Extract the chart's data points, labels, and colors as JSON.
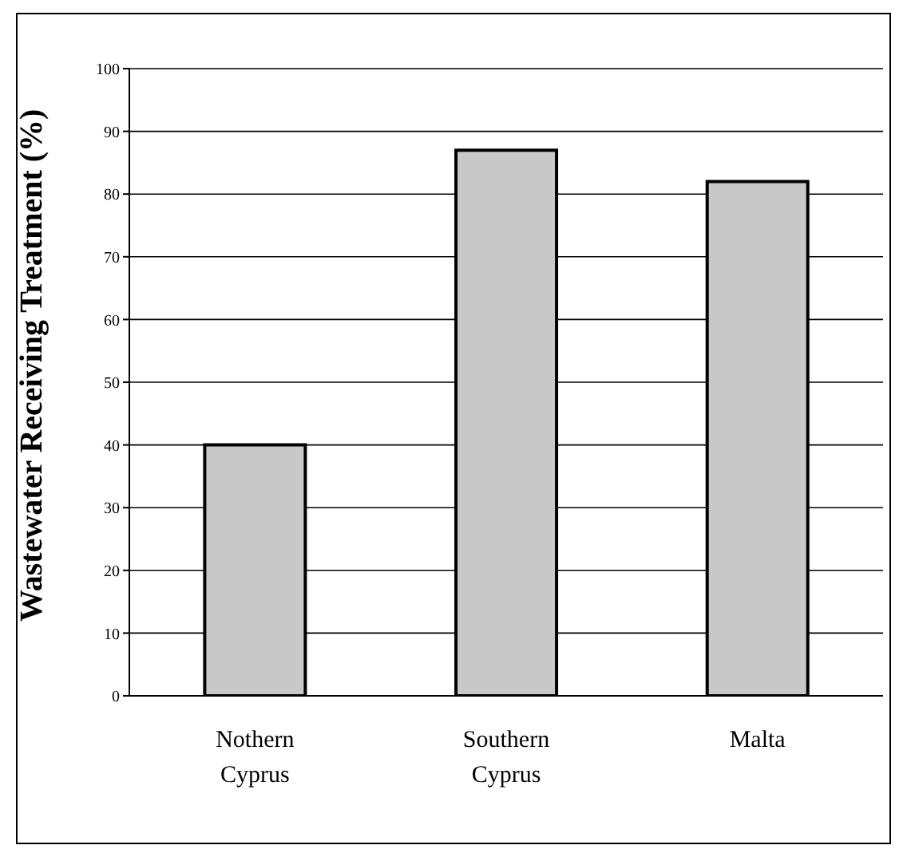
{
  "chart_data": {
    "type": "bar",
    "ylabel": "Wastewater Receiving Treatment (%)",
    "categories": [
      "Nothern Cyprus",
      "Southern Cyprus",
      "Malta"
    ],
    "values": [
      40,
      87,
      82
    ],
    "color": "#c8c8c8",
    "ylim": [
      0,
      100
    ],
    "yticks": [
      0,
      10,
      20,
      30,
      40,
      50,
      60,
      70,
      80,
      90,
      100
    ],
    "grid": "y"
  }
}
